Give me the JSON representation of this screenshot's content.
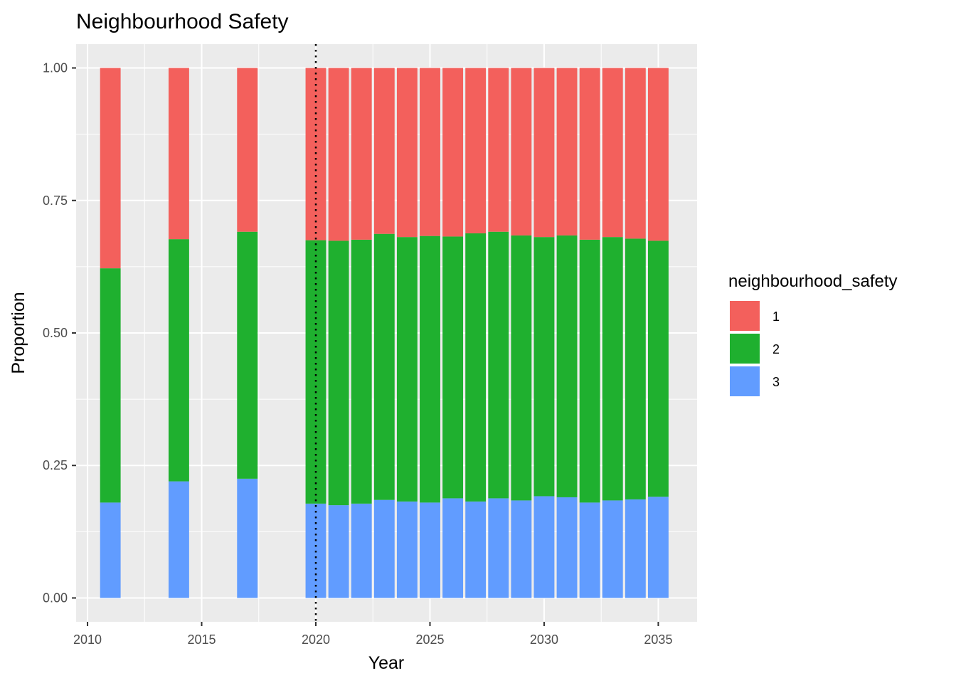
{
  "chart_data": {
    "type": "bar",
    "stacked": true,
    "title": "Neighbourhood Safety",
    "xlabel": "Year",
    "ylabel": "Proportion",
    "xlim": [
      2009.5,
      2036.7
    ],
    "ylim": [
      -0.045,
      1.045
    ],
    "x_ticks": [
      2010,
      2015,
      2020,
      2025,
      2030,
      2035
    ],
    "y_ticks": [
      0.0,
      0.25,
      0.5,
      0.75,
      1.0
    ],
    "y_tick_labels": [
      "0.00",
      "0.25",
      "0.50",
      "0.75",
      "1.00"
    ],
    "vline": {
      "x": 2020,
      "style": "dotted",
      "color": "#000000"
    },
    "grid": true,
    "legend": {
      "title": "neighbourhood_safety",
      "position": "right"
    },
    "x": [
      2011,
      2014,
      2017,
      2020,
      2021,
      2022,
      2023,
      2024,
      2025,
      2026,
      2027,
      2028,
      2029,
      2030,
      2031,
      2032,
      2033,
      2034,
      2035
    ],
    "series": [
      {
        "name": "3",
        "color": "#619CFF",
        "values": [
          0.18,
          0.22,
          0.225,
          0.178,
          0.175,
          0.178,
          0.185,
          0.182,
          0.18,
          0.188,
          0.182,
          0.188,
          0.184,
          0.192,
          0.19,
          0.18,
          0.184,
          0.186,
          0.191
        ]
      },
      {
        "name": "2",
        "color": "#1FB02F",
        "values": [
          0.442,
          0.457,
          0.466,
          0.497,
          0.499,
          0.498,
          0.502,
          0.499,
          0.503,
          0.494,
          0.506,
          0.503,
          0.5,
          0.489,
          0.494,
          0.496,
          0.497,
          0.492,
          0.483
        ]
      },
      {
        "name": "1",
        "color": "#F3605C",
        "values": [
          0.378,
          0.323,
          0.309,
          0.325,
          0.326,
          0.324,
          0.313,
          0.319,
          0.317,
          0.318,
          0.312,
          0.309,
          0.316,
          0.319,
          0.316,
          0.324,
          0.319,
          0.322,
          0.326
        ]
      }
    ]
  }
}
